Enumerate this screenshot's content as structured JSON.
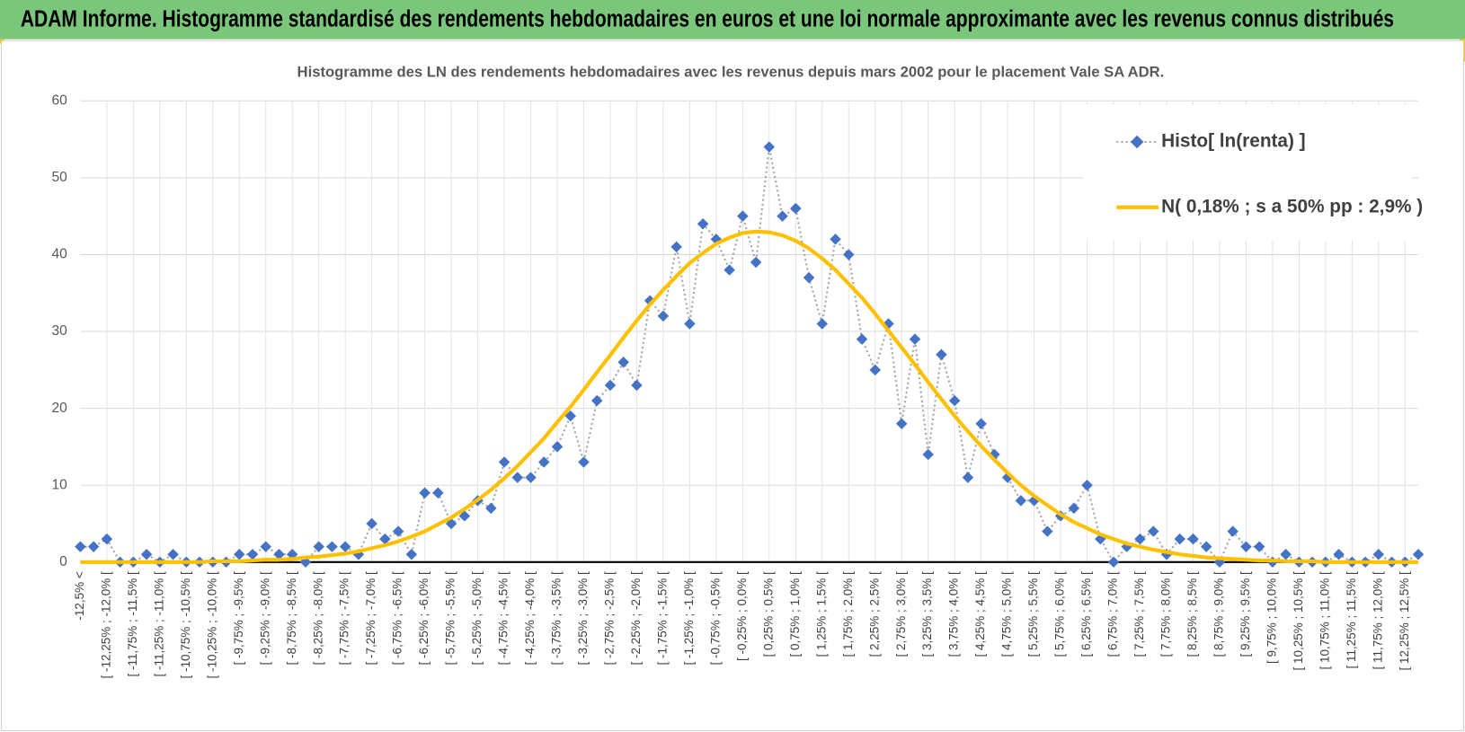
{
  "header": {
    "title": "ADAM Informe. Histogramme standardisé des rendements hebdomadaires en euros et une loi normale approximante avec les revenus connus distribués"
  },
  "chart_data": {
    "type": "line",
    "title": "Histogramme des LN des rendements hebdomadaires avec les revenus depuis mars 2002 pour le placement Vale SA ADR.",
    "categories": [
      "-12,5% <",
      null,
      "[ -12,25% ; -12,0% [",
      null,
      "[ -11,75% ; -11,5% [",
      null,
      "[ -11,25% ; -11,0% [",
      null,
      "[ -10,75% ; -10,5% [",
      null,
      "[ -10,25% ; -10,0% [",
      null,
      "[ -9,75% ; -9,5% [",
      null,
      "[ -9,25% ; -9,0% [",
      null,
      "[ -8,75% ; -8,5% [",
      null,
      "[ -8,25% ; -8,0% [",
      null,
      "[ -7,75% ; -7,5% [",
      null,
      "[ -7,25% ; -7,0% [",
      null,
      "[ -6,75% ; -6,5% [",
      null,
      "[ -6,25% ; -6,0% [",
      null,
      "[ -5,75% ; -5,5% [",
      null,
      "[ -5,25% ; -5,0% [",
      null,
      "[ -4,75% ; -4,5% [",
      null,
      "[ -4,25% ; -4,0% [",
      null,
      "[ -3,75% ; -3,5% [",
      null,
      "[ -3,25% ; -3,0% [",
      null,
      "[ -2,75% ; -2,5% [",
      null,
      "[ -2,25% ; -2,0% [",
      null,
      "[ -1,75% ; -1,5% [",
      null,
      "[ -1,25% ; -1,0% [",
      null,
      "[ -0,75% ; -0,5% [",
      null,
      "[ -0,25% ; 0,0% [",
      null,
      "[ 0,25% ; 0,5% [",
      null,
      "[ 0,75% ; 1,0% [",
      null,
      "[ 1,25% ; 1,5% [",
      null,
      "[ 1,75% ; 2,0% [",
      null,
      "[ 2,25% ; 2,5% [",
      null,
      "[ 2,75% ; 3,0% [",
      null,
      "[ 3,25% ; 3,5% [",
      null,
      "[ 3,75% ; 4,0% [",
      null,
      "[ 4,25% ; 4,5% [",
      null,
      "[ 4,75% ; 5,0% [",
      null,
      "[ 5,25% ; 5,5% [",
      null,
      "[ 5,75% ; 6,0% [",
      null,
      "[ 6,25% ; 6,5% [",
      null,
      "[ 6,75% ; 7,0% [",
      null,
      "[ 7,25% ; 7,5% [",
      null,
      "[ 7,75% ; 8,0% [",
      null,
      "[ 8,25% ; 8,5% [",
      null,
      "[ 8,75% ; 9,0% [",
      null,
      "[ 9,25% ; 9,5% [",
      null,
      "[ 9,75% ; 10,0% [",
      null,
      "[ 10,25% ; 10,5% [",
      null,
      "[ 10,75% ; 11,0% [",
      null,
      "[ 11,25% ; 11,5% [",
      null,
      "[ 11,75% ; 12,0% [",
      null,
      "[ 12,25% ; 12,5% [",
      null
    ],
    "series": [
      {
        "name": "Histo[ ln(renta) ]",
        "color": "#4472c4",
        "line_color": "#a5a5a5",
        "line_style": "dotted",
        "marker": "diamond",
        "values": [
          2,
          2,
          3,
          0,
          0,
          1,
          0,
          1,
          0,
          0,
          0,
          0,
          1,
          1,
          2,
          1,
          1,
          0,
          2,
          2,
          2,
          1,
          5,
          3,
          4,
          1,
          9,
          9,
          5,
          6,
          8,
          7,
          13,
          11,
          11,
          13,
          15,
          19,
          13,
          21,
          23,
          26,
          23,
          34,
          32,
          41,
          31,
          44,
          42,
          38,
          45,
          39,
          54,
          45,
          46,
          37,
          31,
          42,
          40,
          29,
          25,
          31,
          18,
          29,
          14,
          27,
          21,
          11,
          18,
          14,
          11,
          8,
          8,
          4,
          6,
          7,
          10,
          3,
          0,
          2,
          3,
          4,
          1,
          3,
          3,
          2,
          0,
          4,
          2,
          2,
          0,
          1,
          0,
          0,
          0,
          1,
          0,
          0,
          1,
          0,
          0,
          1
        ]
      },
      {
        "name": "N( 0,18% ; s a 50% pp : 2,9% )",
        "color": "#ffc000",
        "line_style": "solid",
        "marker": "none",
        "values": [
          0,
          0,
          0,
          0,
          0,
          0,
          0,
          0,
          0,
          0,
          0.1,
          0.1,
          0.1,
          0.2,
          0.3,
          0.3,
          0.4,
          0.6,
          0.7,
          0.9,
          1.1,
          1.4,
          1.8,
          2.2,
          2.7,
          3.3,
          4.0,
          4.9,
          5.8,
          6.9,
          8.1,
          9.4,
          10.9,
          12.5,
          14.3,
          16.1,
          18.2,
          20.2,
          22.4,
          24.7,
          26.9,
          29.2,
          31.4,
          33.5,
          35.4,
          37.2,
          38.9,
          40.2,
          41.4,
          42.2,
          42.8,
          43.0,
          42.9,
          42.5,
          41.8,
          40.8,
          39.5,
          38.0,
          36.2,
          34.4,
          32.3,
          30.1,
          27.9,
          25.7,
          23.4,
          21.2,
          19.0,
          17.0,
          15.1,
          13.3,
          11.6,
          10.0,
          8.6,
          7.4,
          6.2,
          5.2,
          4.4,
          3.6,
          3.0,
          2.4,
          2.0,
          1.6,
          1.3,
          1.0,
          0.8,
          0.6,
          0.5,
          0.4,
          0.3,
          0.2,
          0.2,
          0.1,
          0.1,
          0.1,
          0,
          0,
          0,
          0,
          0,
          0,
          0,
          0
        ]
      }
    ],
    "ylim": [
      0,
      60
    ],
    "yticks": [
      0,
      10,
      20,
      30,
      40,
      50,
      60
    ],
    "grid": true,
    "legend": "upper right"
  }
}
